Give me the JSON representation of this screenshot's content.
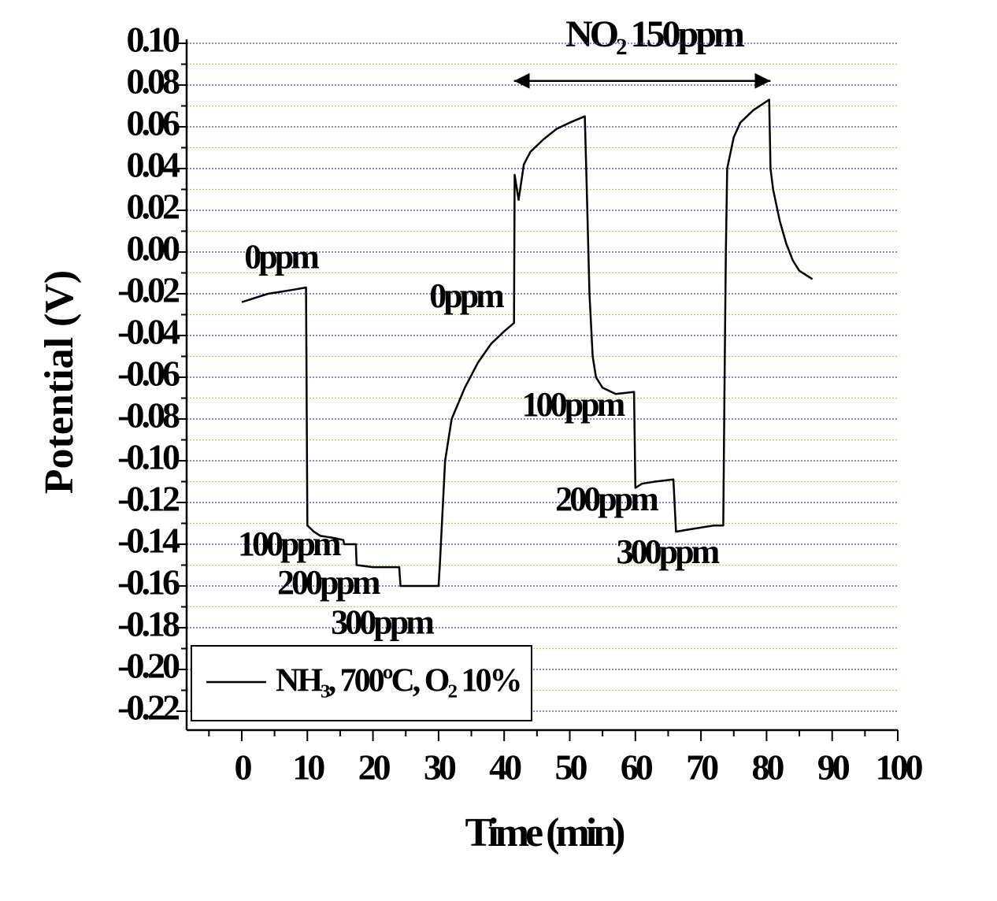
{
  "chart_data": {
    "type": "line",
    "title": "NO₂ 150ppm",
    "x_label": "Time (min)",
    "y_label": "Potential (V)",
    "x": [
      0,
      2,
      4,
      6,
      8,
      9.8,
      10,
      11,
      12,
      14,
      15.5,
      15.6,
      17.4,
      17.5,
      20,
      24,
      24.2,
      27,
      30,
      30.2,
      31,
      32,
      34,
      36,
      38,
      40,
      41.5,
      41.6,
      42.2,
      43,
      44,
      46,
      48,
      50,
      52.3,
      52.6,
      53,
      53.5,
      54,
      55,
      57,
      59.8,
      60,
      61,
      63,
      65.8,
      66.2,
      68,
      72,
      73.4,
      73.6,
      73.8,
      74,
      75,
      76,
      78,
      80.4,
      80.6,
      81,
      82,
      83,
      84,
      85,
      87
    ],
    "series": [
      {
        "name": "NH₃, 700ºC, O₂ 10%",
        "color": "#000000",
        "values": [
          -0.024,
          -0.022,
          -0.02,
          -0.019,
          -0.018,
          -0.017,
          -0.131,
          -0.134,
          -0.136,
          -0.137,
          -0.138,
          -0.14,
          -0.14,
          -0.15,
          -0.151,
          -0.151,
          -0.16,
          -0.16,
          -0.16,
          -0.15,
          -0.1,
          -0.08,
          -0.065,
          -0.053,
          -0.044,
          -0.038,
          -0.034,
          0.037,
          0.025,
          0.042,
          0.048,
          0.054,
          0.059,
          0.062,
          0.065,
          0.03,
          -0.02,
          -0.05,
          -0.06,
          -0.065,
          -0.068,
          -0.067,
          -0.113,
          -0.111,
          -0.11,
          -0.109,
          -0.134,
          -0.133,
          -0.131,
          -0.131,
          -0.06,
          0.0,
          0.04,
          0.055,
          0.062,
          0.068,
          0.073,
          0.04,
          0.03,
          0.015,
          0.004,
          -0.004,
          -0.009,
          -0.013
        ]
      }
    ],
    "annotations": [
      "0ppm",
      "100ppm",
      "200ppm",
      "300ppm",
      "0ppm",
      "100ppm",
      "200ppm",
      "300ppm"
    ],
    "xlim": [
      -8.4,
      100
    ],
    "ylim": [
      -0.23,
      0.1
    ],
    "xticks": [
      0,
      10,
      20,
      30,
      40,
      50,
      60,
      70,
      80,
      90,
      100
    ],
    "minor_xticks": [
      -5,
      5,
      15,
      25,
      35,
      45,
      55,
      65,
      75,
      85,
      95
    ],
    "yticks": [
      {
        "value": 0.1,
        "label": "0.10"
      },
      0.08,
      0.06,
      0.04,
      0.02,
      {
        "value": 0,
        "label": "0.00"
      },
      -0.02,
      -0.04,
      -0.06,
      -0.08,
      {
        "value": -0.1,
        "label": "-0.10"
      },
      -0.12,
      -0.14,
      -0.16,
      -0.18,
      {
        "value": -0.2,
        "label": "-0.20"
      },
      -0.22
    ],
    "minor_yticks": [
      0.09,
      0.07,
      0.05,
      0.03,
      0.01,
      -0.01,
      -0.03,
      -0.05,
      -0.07,
      -0.09,
      -0.11,
      -0.13,
      -0.15,
      -0.17,
      -0.19,
      -0.21
    ],
    "grid": true,
    "grid_color": "#3344bb",
    "minor_grid_color": "#99dd55",
    "legend": "lower left"
  }
}
